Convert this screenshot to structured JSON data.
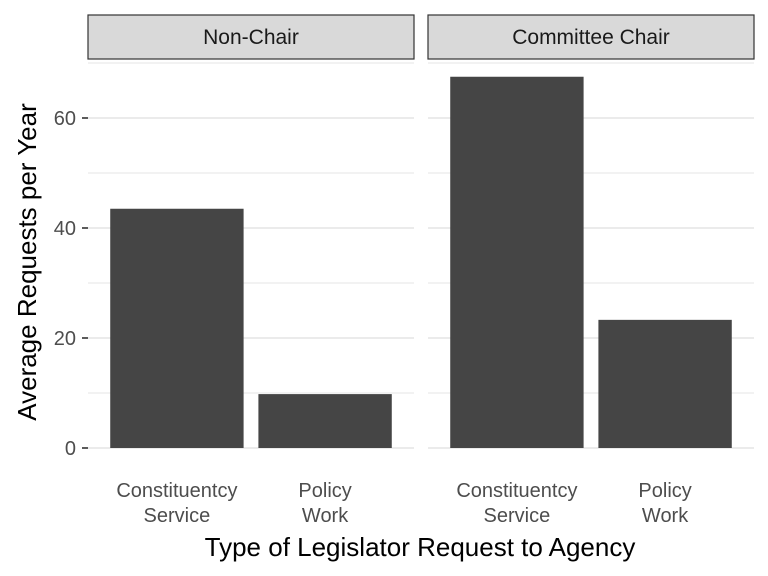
{
  "chart_data": {
    "type": "bar",
    "facets": [
      {
        "label": "Non-Chair",
        "categories": [
          "Constituentcy Service",
          "Policy Work"
        ],
        "values": [
          43.5,
          9.8
        ]
      },
      {
        "label": "Committee Chair",
        "categories": [
          "Constituentcy Service",
          "Policy Work"
        ],
        "values": [
          67.5,
          23.3
        ]
      }
    ],
    "category_labels": [
      [
        "Constituentcy",
        "Service"
      ],
      [
        "Policy",
        "Work"
      ]
    ],
    "xlabel": "Type of Legislator Request to Agency",
    "ylabel": "Average Requests per Year",
    "yticks": [
      0,
      20,
      40,
      60
    ],
    "ylim": [
      0,
      70
    ],
    "grid": true,
    "bar_color": "#454545"
  }
}
